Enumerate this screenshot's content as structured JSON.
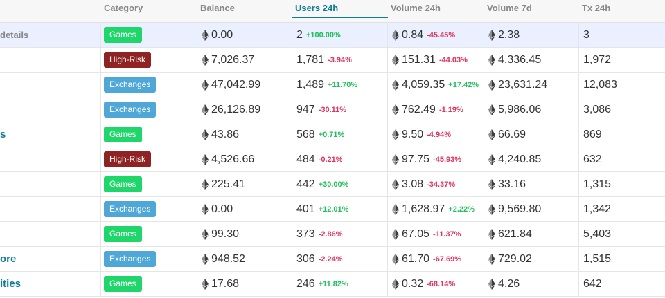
{
  "columns": {
    "category": "Category",
    "balance": "Balance",
    "users": "Users 24h",
    "volume": "Volume 24h",
    "volume7d": "Volume 7d",
    "tx": "Tx 24h"
  },
  "rows": [
    {
      "name": "details",
      "category": "Games",
      "cat_class": "b-games",
      "balance": "0.00",
      "users": "2",
      "users_chg": "+100.00%",
      "users_dir": "up",
      "volume": "0.84",
      "volume_chg": "-45.45%",
      "volume_dir": "down",
      "volume7d": "2.38",
      "tx": "3"
    },
    {
      "name": "",
      "category": "High-Risk",
      "cat_class": "b-highrisk",
      "balance": "7,026.37",
      "users": "1,781",
      "users_chg": "-3.94%",
      "users_dir": "down",
      "volume": "151.31",
      "volume_chg": "-44.03%",
      "volume_dir": "down",
      "volume7d": "4,336.45",
      "tx": "1,972"
    },
    {
      "name": "",
      "category": "Exchanges",
      "cat_class": "b-exchanges",
      "balance": "47,042.99",
      "users": "1,489",
      "users_chg": "+11.70%",
      "users_dir": "up",
      "volume": "4,059.35",
      "volume_chg": "+17.42%",
      "volume_dir": "up",
      "volume7d": "23,631.24",
      "tx": "12,083"
    },
    {
      "name": "",
      "category": "Exchanges",
      "cat_class": "b-exchanges",
      "balance": "26,126.89",
      "users": "947",
      "users_chg": "-30.11%",
      "users_dir": "down",
      "volume": "762.49",
      "volume_chg": "-1.19%",
      "volume_dir": "down",
      "volume7d": "5,986.06",
      "tx": "3,086"
    },
    {
      "name": "s",
      "category": "Games",
      "cat_class": "b-games",
      "balance": "43.86",
      "users": "568",
      "users_chg": "+0.71%",
      "users_dir": "up",
      "volume": "9.50",
      "volume_chg": "-4.94%",
      "volume_dir": "down",
      "volume7d": "66.69",
      "tx": "869"
    },
    {
      "name": "",
      "category": "High-Risk",
      "cat_class": "b-highrisk",
      "balance": "4,526.66",
      "users": "484",
      "users_chg": "-0.21%",
      "users_dir": "down",
      "volume": "97.75",
      "volume_chg": "-45.93%",
      "volume_dir": "down",
      "volume7d": "4,240.85",
      "tx": "632"
    },
    {
      "name": "",
      "category": "Games",
      "cat_class": "b-games",
      "balance": "225.41",
      "users": "442",
      "users_chg": "+30.00%",
      "users_dir": "up",
      "volume": "3.08",
      "volume_chg": "-34.37%",
      "volume_dir": "down",
      "volume7d": "33.16",
      "tx": "1,315"
    },
    {
      "name": "",
      "category": "Exchanges",
      "cat_class": "b-exchanges",
      "balance": "0.00",
      "users": "401",
      "users_chg": "+12.01%",
      "users_dir": "up",
      "volume": "1,628.97",
      "volume_chg": "+2.22%",
      "volume_dir": "up",
      "volume7d": "9,569.80",
      "tx": "1,342"
    },
    {
      "name": "",
      "category": "Games",
      "cat_class": "b-games",
      "balance": "99.30",
      "users": "373",
      "users_chg": "-2.86%",
      "users_dir": "down",
      "volume": "67.05",
      "volume_chg": "-11.37%",
      "volume_dir": "down",
      "volume7d": "621.84",
      "tx": "5,403"
    },
    {
      "name": "ore",
      "category": "Exchanges",
      "cat_class": "b-exchanges",
      "balance": "948.52",
      "users": "306",
      "users_chg": "-2.24%",
      "users_dir": "down",
      "volume": "61.70",
      "volume_chg": "-67.69%",
      "volume_dir": "down",
      "volume7d": "729.02",
      "tx": "1,515"
    },
    {
      "name": "ities",
      "category": "Games",
      "cat_class": "b-games",
      "balance": "17.68",
      "users": "246",
      "users_chg": "+11.82%",
      "users_dir": "up",
      "volume": "0.32",
      "volume_chg": "-68.14%",
      "volume_dir": "down",
      "volume7d": "4.26",
      "tx": "642"
    }
  ]
}
